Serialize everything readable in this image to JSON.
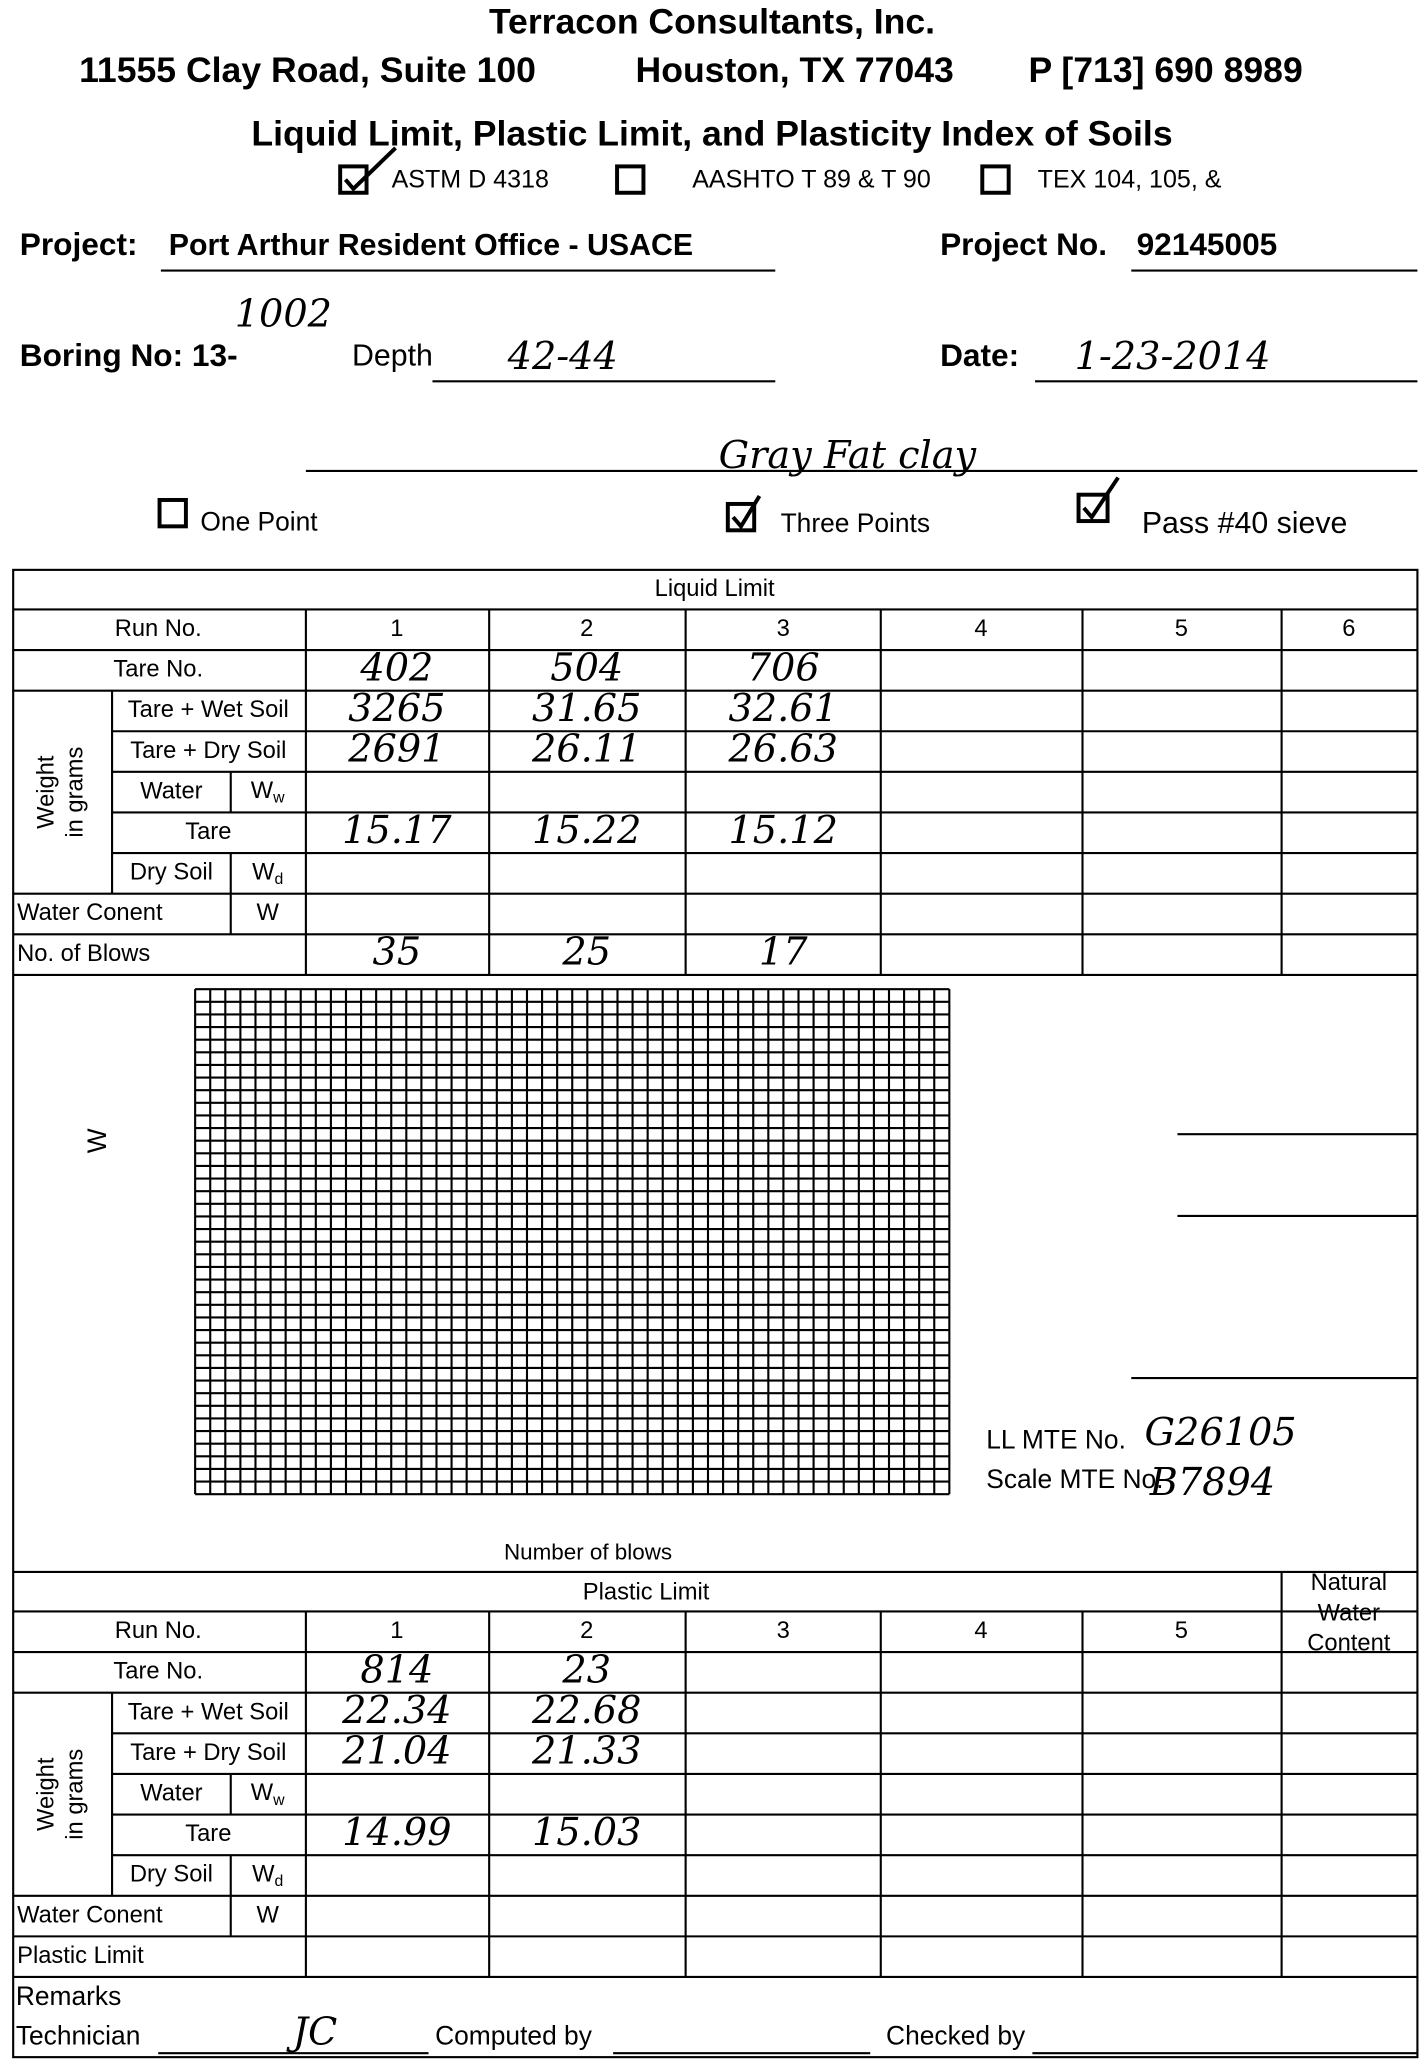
{
  "header": {
    "company": "Terracon Consultants, Inc.",
    "address": "11555 Clay Road, Suite 100",
    "city": "Houston, TX 77043",
    "phone": "P  [713] 690 8989",
    "title": "Liquid Limit, Plastic Limit, and Plasticity Index of Soils",
    "standards": [
      "ASTM D 4318",
      "AASHTO T 89 & T 90",
      "TEX 104, 105, &"
    ]
  },
  "project": {
    "label": "Project:",
    "name": "Port Arthur Resident Office  -  USACE",
    "number_label": "Project  No.",
    "number": "92145005"
  },
  "boring": {
    "label": "Boring No: 13-",
    "number": "1002",
    "depth_label": "Depth",
    "depth": "42-44",
    "date_label": "Date:",
    "date": "1-23-2014",
    "description": "Gray Fat clay"
  },
  "options": [
    "One Point",
    "Three Points",
    "Pass #40 sieve"
  ],
  "liquid_limit": {
    "title": "Liquid Limit",
    "weight_label": [
      "Weight",
      "in grams"
    ],
    "row_labels": {
      "run": "Run No.",
      "tare_no": "Tare No.",
      "wet": "Tare + Wet Soil",
      "dry": "Tare + Dry Soil",
      "water": "Water",
      "tare": "Tare",
      "dry_soil": "Dry Soil",
      "water_content": "Water Conent",
      "blows": "No. of Blows"
    },
    "symbols": {
      "water": [
        "W",
        "w"
      ],
      "dry_soil": [
        "W",
        "d"
      ],
      "water_content": "W"
    },
    "runs": [
      1,
      2,
      3,
      4,
      5,
      6
    ],
    "tare_no": [
      "402",
      "504",
      "706"
    ],
    "wet": [
      "3265",
      "31.65",
      "32.61"
    ],
    "dry": [
      "2691",
      "26.11",
      "26.63"
    ],
    "tare": [
      "15.17",
      "15.22",
      "15.12"
    ],
    "blows": [
      "35",
      "25",
      "17"
    ]
  },
  "graph": {
    "y_label": "W",
    "x_label": "Number of blows",
    "ll_mte_label": "LL MTE No.",
    "ll_mte": "G26105",
    "scale_mte_label": "Scale MTE No.",
    "scale_mte": "B7894"
  },
  "plastic_limit": {
    "title": "Plastic Limit",
    "natural_water_content": [
      "Natural",
      "Water",
      "Content"
    ],
    "weight_label": [
      "Weight",
      "in grams"
    ],
    "row_labels": {
      "run": "Run No.",
      "tare_no": "Tare No.",
      "wet": "Tare + Wet Soil",
      "dry": "Tare + Dry Soil",
      "water": "Water",
      "tare": "Tare",
      "dry_soil": "Dry Soil",
      "water_content": "Water Conent",
      "plastic_limit": "Plastic Limit"
    },
    "symbols": {
      "water": [
        "W",
        "w"
      ],
      "dry_soil": [
        "W",
        "d"
      ],
      "water_content": "W"
    },
    "runs": [
      1,
      2,
      3,
      4,
      5
    ],
    "tare_no": [
      "814",
      "23"
    ],
    "wet": [
      "22.34",
      "22.68"
    ],
    "dry": [
      "21.04",
      "21.33"
    ],
    "tare": [
      "14.99",
      "15.03"
    ]
  },
  "footer": {
    "remarks": "Remarks",
    "technician_label": "Technician",
    "technician": "JC",
    "computed_by": "Computed by",
    "checked_by": "Checked by"
  }
}
